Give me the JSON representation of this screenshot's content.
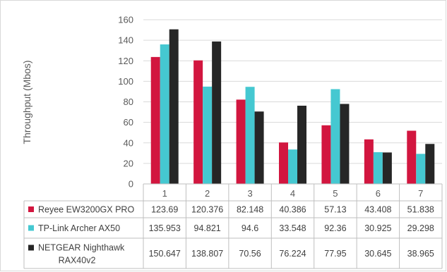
{
  "chart_data": {
    "type": "bar",
    "ylabel": "Throughput (Mbos)",
    "ylim": [
      0,
      160
    ],
    "yticks": [
      0,
      20,
      40,
      60,
      80,
      100,
      120,
      140,
      160
    ],
    "grid": true,
    "legend_position": "data-table",
    "categories": [
      "1",
      "2",
      "3",
      "4",
      "5",
      "6",
      "7"
    ],
    "series": [
      {
        "name": "Reyee EW3200GX PRO",
        "color": "#d2163f",
        "values": [
          123.69,
          120.376,
          82.148,
          40.386,
          57.13,
          43.408,
          51.838
        ],
        "labels": [
          "123.69",
          "120.376",
          "82.148",
          "40.386",
          "57.13",
          "43.408",
          "51.838"
        ]
      },
      {
        "name": "TP-Link Archer AX50",
        "color": "#45c8d1",
        "values": [
          135.953,
          94.821,
          94.6,
          33.548,
          92.36,
          30.925,
          29.298
        ],
        "labels": [
          "135.953",
          "94.821",
          "94.6",
          "33.548",
          "92.36",
          "30.925",
          "29.298"
        ]
      },
      {
        "name": "NETGEAR Nighthawk RAX40v2",
        "name_lines": [
          "NETGEAR Nighthawk",
          "RAX40v2"
        ],
        "color": "#262626",
        "values": [
          150.647,
          138.807,
          70.56,
          76.224,
          77.95,
          30.645,
          38.965
        ],
        "labels": [
          "150.647",
          "138.807",
          "70.56",
          "76.224",
          "77.95",
          "30.645",
          "38.965"
        ]
      }
    ]
  }
}
